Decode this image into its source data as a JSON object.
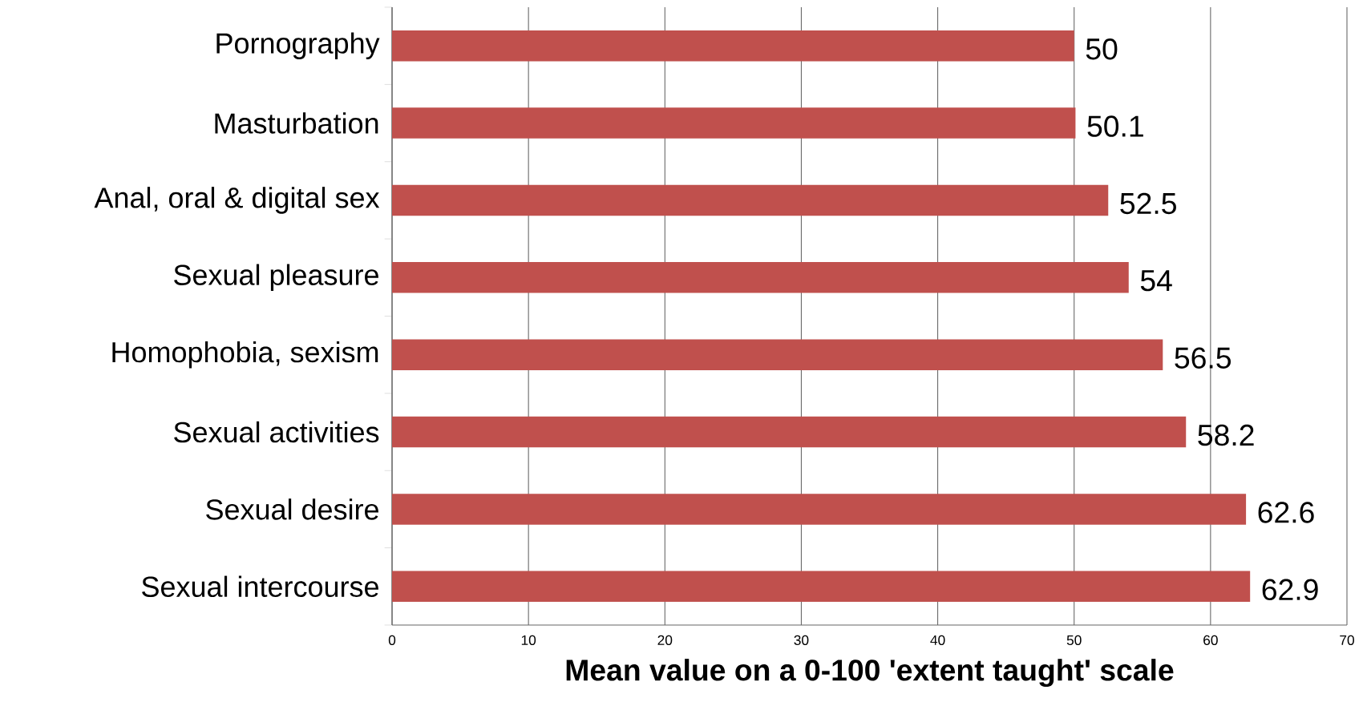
{
  "chart_data": {
    "type": "bar",
    "orientation": "horizontal",
    "xlabel": "Mean value on a 0-100 'extent taught' scale",
    "categories": [
      "Pornography",
      "Masturbation",
      "Anal, oral & digital sex",
      "Sexual pleasure",
      "Homophobia, sexism",
      "Sexual activities",
      "Sexual desire",
      "Sexual intercourse"
    ],
    "values": [
      50,
      50.1,
      52.5,
      54,
      56.5,
      58.2,
      62.6,
      62.9
    ],
    "color": "#c0504d",
    "xlim": [
      0,
      70
    ],
    "xticks": [
      0,
      10,
      20,
      30,
      40,
      50,
      60,
      70
    ],
    "grid": "x",
    "data_labels": true
  }
}
